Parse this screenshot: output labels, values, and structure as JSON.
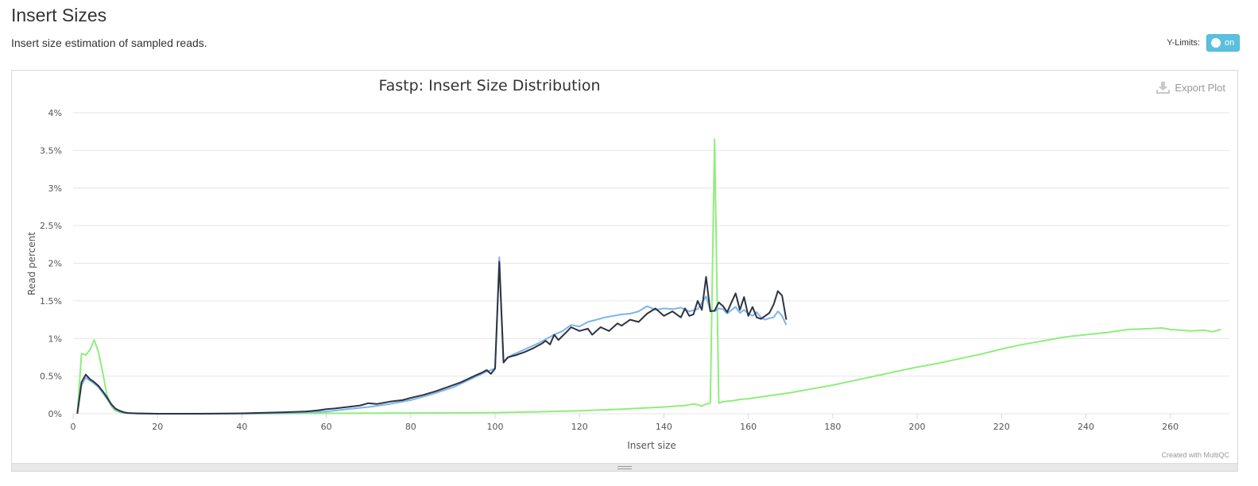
{
  "section": {
    "title": "Insert Sizes",
    "description": "Insert size estimation of sampled reads."
  },
  "controls": {
    "ylimits_label": "Y-Limits:",
    "ylimits_state": "on",
    "export_label": "Export Plot",
    "credit": "Created with MultiQC"
  },
  "colors": {
    "series_1": "#2f3341",
    "series_2": "#7cb5ec",
    "series_3": "#90ed7d",
    "grid": "#e6e6e6",
    "toggle": "#5bc0de"
  },
  "chart_data": {
    "type": "line",
    "title": "Fastp: Insert Size Distribution",
    "xlabel": "Insert size",
    "ylabel": "Read percent",
    "xlim": [
      0,
      274
    ],
    "ylim": [
      0,
      4
    ],
    "x_ticks": [
      0,
      20,
      40,
      60,
      80,
      100,
      120,
      140,
      160,
      180,
      200,
      220,
      240,
      260
    ],
    "y_ticks": [
      0,
      0.5,
      1,
      1.5,
      2,
      2.5,
      3,
      3.5,
      4
    ],
    "y_tick_labels": [
      "0%",
      "0.5%",
      "1%",
      "1.5%",
      "2%",
      "2.5%",
      "3%",
      "3.5%",
      "4%"
    ],
    "grid": true,
    "legend": "none",
    "series": [
      {
        "points": [
          [
            1,
            0.0
          ],
          [
            2,
            0.42
          ],
          [
            3,
            0.52
          ],
          [
            4,
            0.46
          ],
          [
            5,
            0.42
          ],
          [
            6,
            0.37
          ],
          [
            7,
            0.3
          ],
          [
            8,
            0.22
          ],
          [
            9,
            0.13
          ],
          [
            10,
            0.07
          ],
          [
            11,
            0.04
          ],
          [
            12,
            0.02
          ],
          [
            13,
            0.01
          ],
          [
            15,
            0.005
          ],
          [
            20,
            0.0
          ],
          [
            30,
            0.0
          ],
          [
            40,
            0.005
          ],
          [
            50,
            0.02
          ],
          [
            55,
            0.03
          ],
          [
            58,
            0.045
          ],
          [
            60,
            0.06
          ],
          [
            62,
            0.07
          ],
          [
            65,
            0.09
          ],
          [
            68,
            0.11
          ],
          [
            70,
            0.14
          ],
          [
            72,
            0.13
          ],
          [
            75,
            0.16
          ],
          [
            78,
            0.18
          ],
          [
            80,
            0.21
          ],
          [
            83,
            0.25
          ],
          [
            86,
            0.3
          ],
          [
            89,
            0.36
          ],
          [
            92,
            0.42
          ],
          [
            95,
            0.5
          ],
          [
            97,
            0.55
          ],
          [
            98,
            0.58
          ],
          [
            99,
            0.53
          ],
          [
            100,
            0.6
          ],
          [
            101,
            2.02
          ],
          [
            102,
            0.68
          ],
          [
            103,
            0.75
          ],
          [
            105,
            0.78
          ],
          [
            107,
            0.82
          ],
          [
            109,
            0.87
          ],
          [
            111,
            0.93
          ],
          [
            112,
            0.97
          ],
          [
            113,
            0.92
          ],
          [
            114,
            1.05
          ],
          [
            115,
            0.98
          ],
          [
            117,
            1.09
          ],
          [
            118,
            1.15
          ],
          [
            120,
            1.1
          ],
          [
            122,
            1.13
          ],
          [
            123,
            1.05
          ],
          [
            125,
            1.15
          ],
          [
            127,
            1.1
          ],
          [
            129,
            1.2
          ],
          [
            130,
            1.17
          ],
          [
            132,
            1.25
          ],
          [
            134,
            1.22
          ],
          [
            136,
            1.33
          ],
          [
            138,
            1.4
          ],
          [
            140,
            1.3
          ],
          [
            142,
            1.36
          ],
          [
            144,
            1.28
          ],
          [
            145,
            1.4
          ],
          [
            146,
            1.3
          ],
          [
            147,
            1.32
          ],
          [
            148,
            1.5
          ],
          [
            149,
            1.38
          ],
          [
            150,
            1.82
          ],
          [
            151,
            1.36
          ],
          [
            152,
            1.37
          ],
          [
            153,
            1.48
          ],
          [
            154,
            1.43
          ],
          [
            155,
            1.35
          ],
          [
            156,
            1.48
          ],
          [
            157,
            1.6
          ],
          [
            158,
            1.38
          ],
          [
            159,
            1.55
          ],
          [
            160,
            1.3
          ],
          [
            161,
            1.42
          ],
          [
            162,
            1.28
          ],
          [
            163,
            1.26
          ],
          [
            164,
            1.3
          ],
          [
            165,
            1.34
          ],
          [
            166,
            1.45
          ],
          [
            167,
            1.63
          ],
          [
            168,
            1.57
          ],
          [
            169,
            1.25
          ]
        ]
      },
      {
        "points": [
          [
            1,
            0.0
          ],
          [
            2,
            0.38
          ],
          [
            3,
            0.48
          ],
          [
            4,
            0.44
          ],
          [
            5,
            0.4
          ],
          [
            6,
            0.35
          ],
          [
            7,
            0.28
          ],
          [
            8,
            0.2
          ],
          [
            9,
            0.12
          ],
          [
            10,
            0.06
          ],
          [
            11,
            0.03
          ],
          [
            12,
            0.015
          ],
          [
            15,
            0.003
          ],
          [
            20,
            0.0
          ],
          [
            40,
            0.003
          ],
          [
            50,
            0.01
          ],
          [
            60,
            0.03
          ],
          [
            65,
            0.06
          ],
          [
            70,
            0.09
          ],
          [
            75,
            0.13
          ],
          [
            80,
            0.18
          ],
          [
            85,
            0.26
          ],
          [
            90,
            0.35
          ],
          [
            95,
            0.48
          ],
          [
            98,
            0.56
          ],
          [
            100,
            0.6
          ],
          [
            101,
            2.08
          ],
          [
            102,
            0.7
          ],
          [
            104,
            0.78
          ],
          [
            106,
            0.83
          ],
          [
            108,
            0.88
          ],
          [
            110,
            0.93
          ],
          [
            112,
            0.99
          ],
          [
            114,
            1.05
          ],
          [
            116,
            1.1
          ],
          [
            118,
            1.18
          ],
          [
            120,
            1.16
          ],
          [
            122,
            1.22
          ],
          [
            124,
            1.25
          ],
          [
            126,
            1.28
          ],
          [
            128,
            1.3
          ],
          [
            130,
            1.32
          ],
          [
            132,
            1.33
          ],
          [
            134,
            1.36
          ],
          [
            136,
            1.43
          ],
          [
            138,
            1.38
          ],
          [
            140,
            1.4
          ],
          [
            142,
            1.39
          ],
          [
            144,
            1.41
          ],
          [
            146,
            1.36
          ],
          [
            148,
            1.39
          ],
          [
            150,
            1.56
          ],
          [
            151,
            1.38
          ],
          [
            152,
            1.36
          ],
          [
            153,
            1.4
          ],
          [
            154,
            1.39
          ],
          [
            155,
            1.33
          ],
          [
            156,
            1.38
          ],
          [
            157,
            1.42
          ],
          [
            158,
            1.34
          ],
          [
            159,
            1.38
          ],
          [
            160,
            1.33
          ],
          [
            161,
            1.3
          ],
          [
            162,
            1.35
          ],
          [
            163,
            1.28
          ],
          [
            164,
            1.25
          ],
          [
            165,
            1.27
          ],
          [
            166,
            1.28
          ],
          [
            167,
            1.36
          ],
          [
            168,
            1.3
          ],
          [
            169,
            1.18
          ]
        ]
      },
      {
        "points": [
          [
            1,
            0.0
          ],
          [
            2,
            0.8
          ],
          [
            3,
            0.78
          ],
          [
            4,
            0.85
          ],
          [
            5,
            0.98
          ],
          [
            6,
            0.82
          ],
          [
            7,
            0.55
          ],
          [
            8,
            0.25
          ],
          [
            9,
            0.1
          ],
          [
            10,
            0.04
          ],
          [
            11,
            0.02
          ],
          [
            12,
            0.01
          ],
          [
            15,
            0.003
          ],
          [
            20,
            0.0
          ],
          [
            40,
            0.0
          ],
          [
            60,
            0.005
          ],
          [
            80,
            0.01
          ],
          [
            100,
            0.015
          ],
          [
            110,
            0.025
          ],
          [
            120,
            0.04
          ],
          [
            130,
            0.06
          ],
          [
            140,
            0.09
          ],
          [
            145,
            0.11
          ],
          [
            147,
            0.13
          ],
          [
            148,
            0.12
          ],
          [
            149,
            0.1
          ],
          [
            150,
            0.13
          ],
          [
            151,
            0.14
          ],
          [
            152,
            3.65
          ],
          [
            153,
            0.14
          ],
          [
            154,
            0.16
          ],
          [
            156,
            0.17
          ],
          [
            158,
            0.19
          ],
          [
            160,
            0.2
          ],
          [
            165,
            0.24
          ],
          [
            170,
            0.28
          ],
          [
            175,
            0.33
          ],
          [
            180,
            0.38
          ],
          [
            185,
            0.44
          ],
          [
            190,
            0.5
          ],
          [
            195,
            0.56
          ],
          [
            200,
            0.62
          ],
          [
            205,
            0.67
          ],
          [
            210,
            0.73
          ],
          [
            215,
            0.79
          ],
          [
            220,
            0.86
          ],
          [
            225,
            0.92
          ],
          [
            230,
            0.97
          ],
          [
            235,
            1.02
          ],
          [
            240,
            1.05
          ],
          [
            245,
            1.08
          ],
          [
            250,
            1.12
          ],
          [
            255,
            1.13
          ],
          [
            258,
            1.14
          ],
          [
            260,
            1.12
          ],
          [
            265,
            1.1
          ],
          [
            268,
            1.11
          ],
          [
            270,
            1.09
          ],
          [
            272,
            1.12
          ]
        ]
      }
    ]
  }
}
